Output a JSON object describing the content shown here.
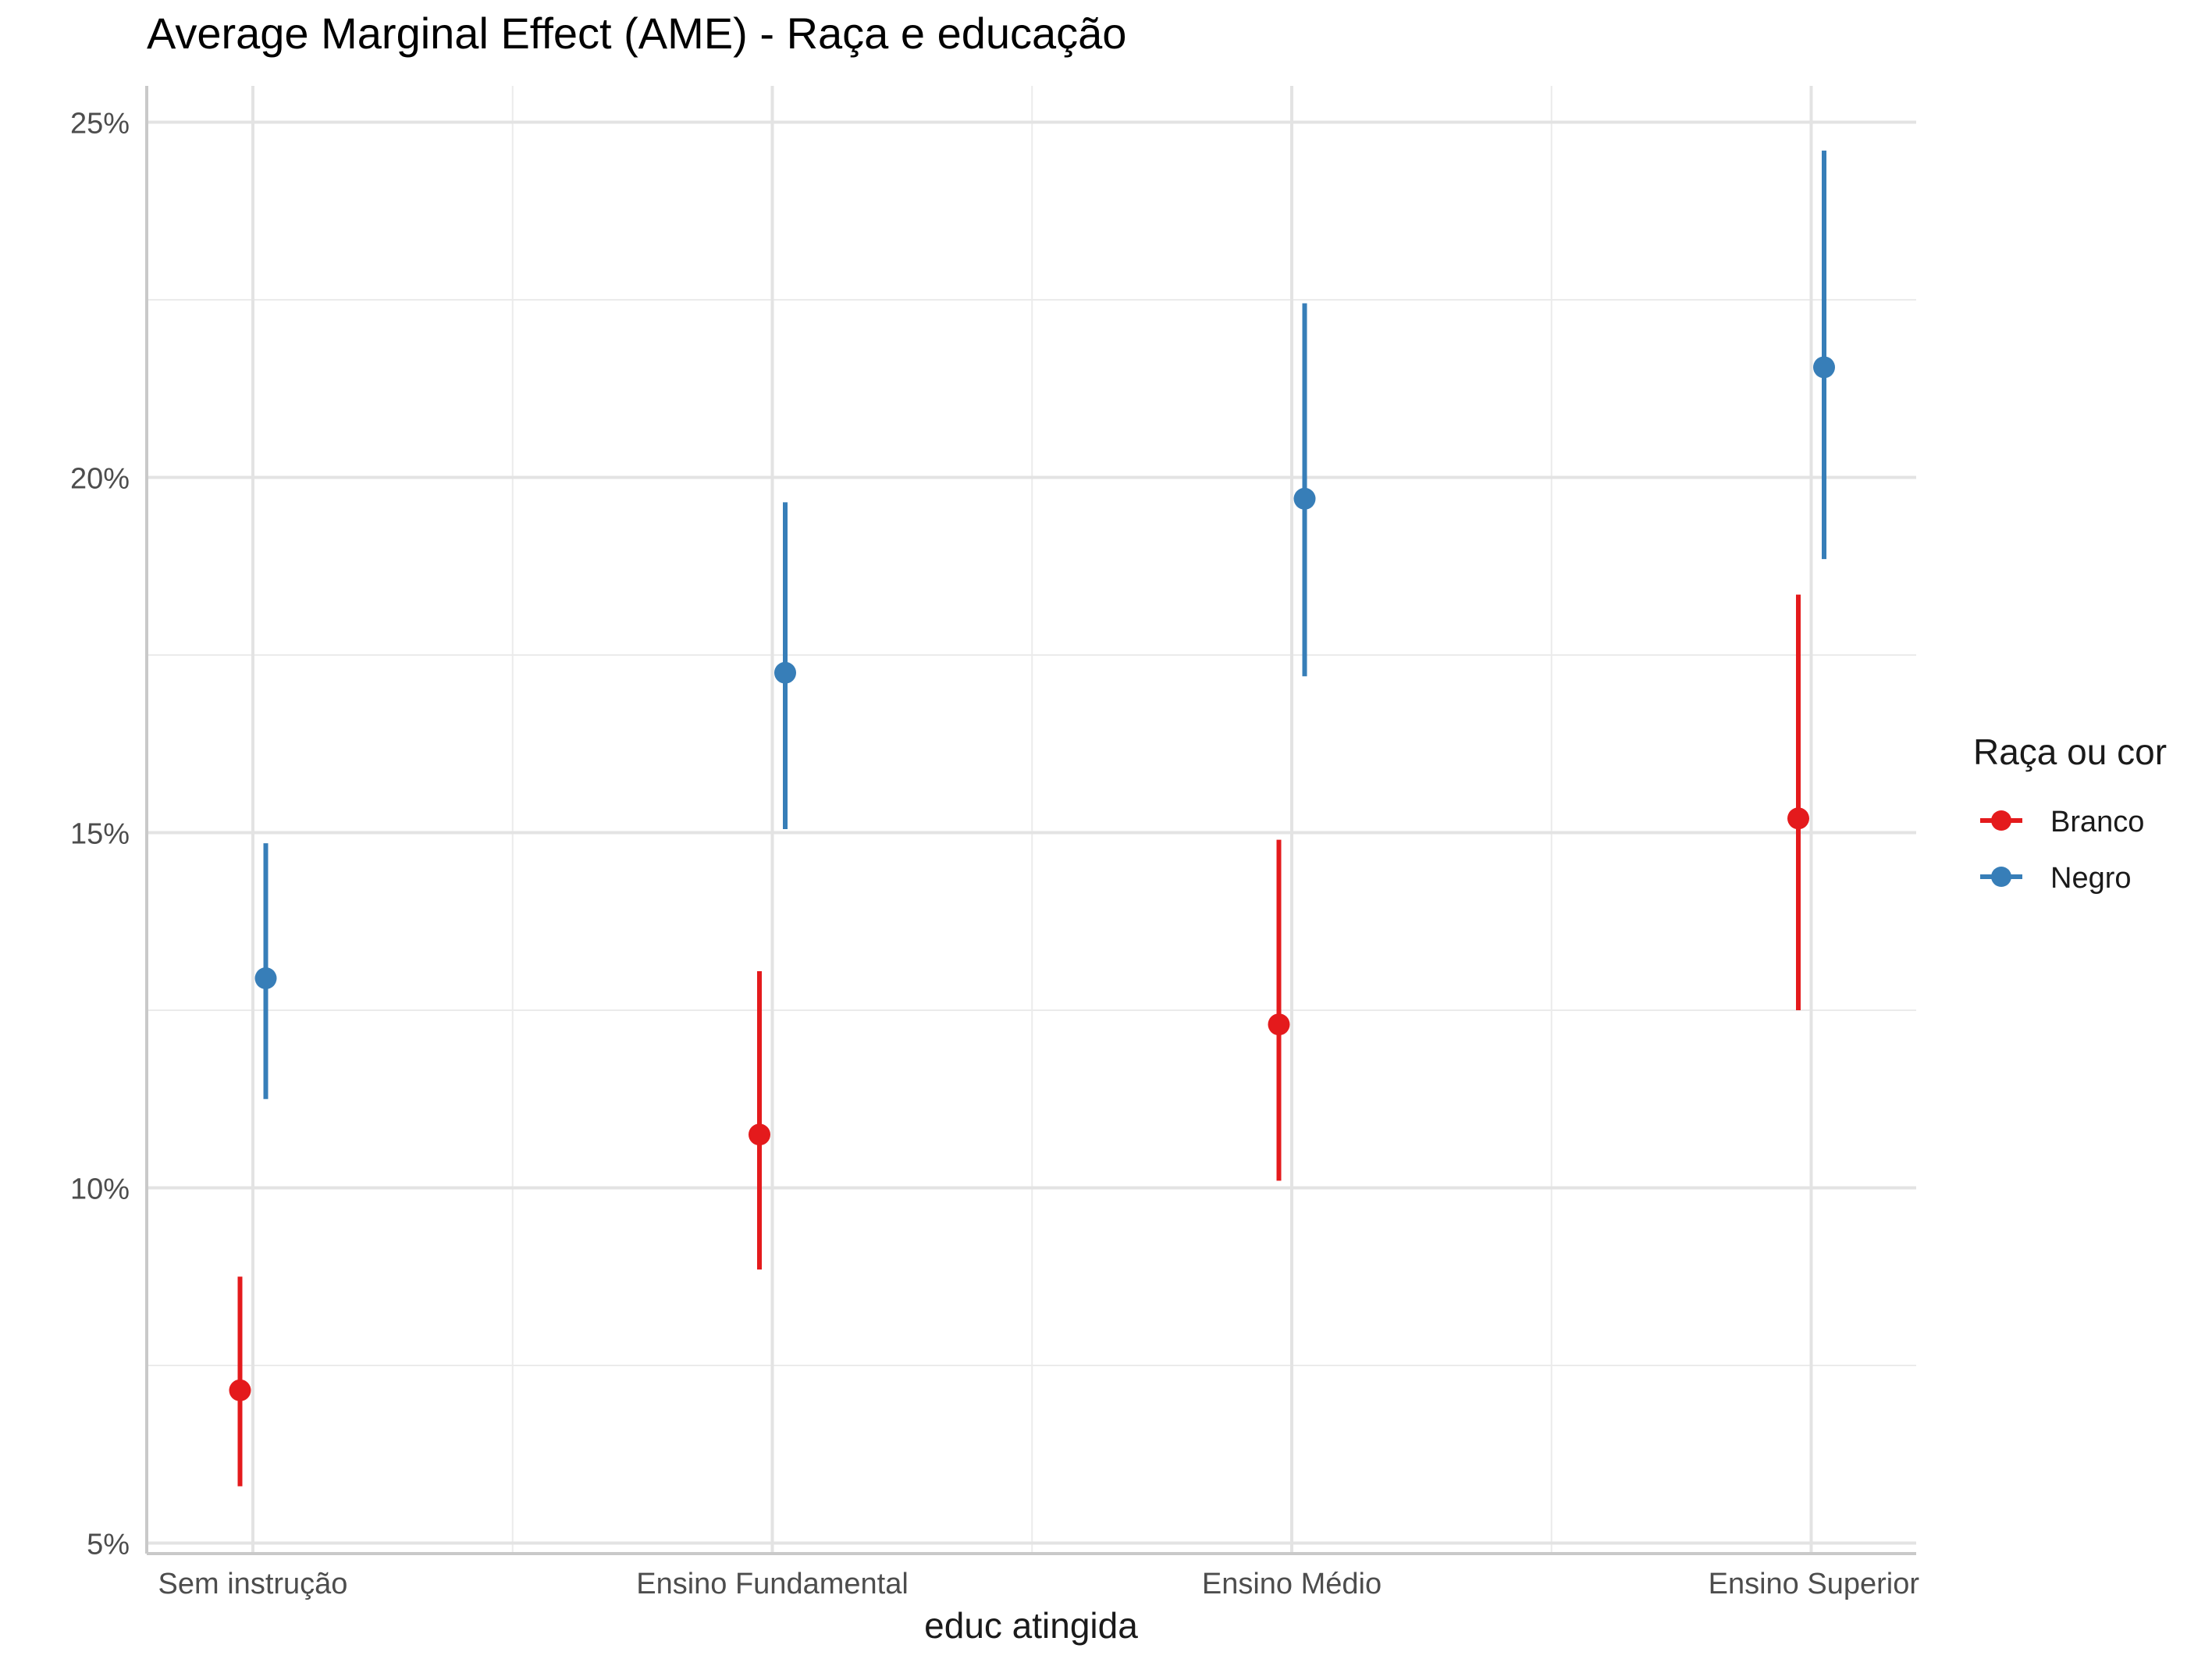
{
  "chart_data": {
    "type": "scatter",
    "subtype": "point-range",
    "title": "Average Marginal Effect (AME) - Raça e educação",
    "xlabel": "educ atingida",
    "ylabel": "",
    "categories": [
      "Sem instrução",
      "Ensino Fundamental",
      "Ensino Médio",
      "Ensino Superior"
    ],
    "ylim": [
      4.8,
      25.5
    ],
    "y_ticks": [
      5,
      10,
      15,
      20,
      25
    ],
    "y_tick_labels": [
      "5%",
      "10%",
      "15%",
      "20%",
      "25%"
    ],
    "y_minor_ticks": [
      7.5,
      12.5,
      17.5,
      22.5
    ],
    "grid": true,
    "legend": {
      "title": "Raça ou cor",
      "position": "right"
    },
    "series": [
      {
        "name": "Branco",
        "color": "#e41a1c",
        "values": [
          7.15,
          10.75,
          12.3,
          15.2
        ],
        "lower": [
          5.8,
          8.85,
          10.1,
          12.5
        ],
        "upper": [
          8.75,
          13.05,
          14.9,
          18.35
        ]
      },
      {
        "name": "Negro",
        "color": "#377eb8",
        "values": [
          12.95,
          17.25,
          19.7,
          21.55
        ],
        "lower": [
          11.25,
          15.05,
          17.2,
          18.85
        ],
        "upper": [
          14.85,
          19.65,
          22.45,
          24.6
        ]
      }
    ]
  }
}
